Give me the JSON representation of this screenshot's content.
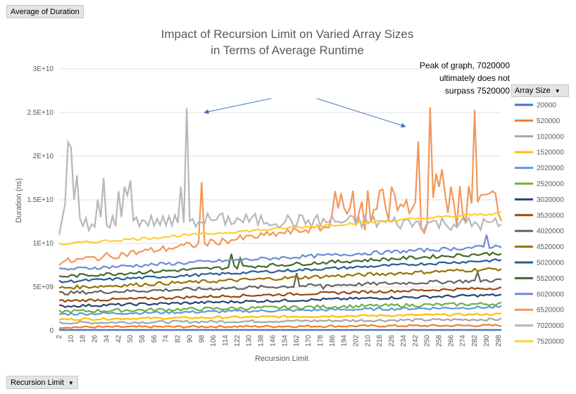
{
  "pivot": {
    "value_field": "Average of Duration",
    "legend_field": "Array Size",
    "axis_field": "Recursion Limit"
  },
  "chart_data": {
    "type": "line",
    "title": [
      "Impact of Recursion Limit on Varied Array Sizes",
      "in Terms of Average Runtime"
    ],
    "xlabel": "Recursion Limit",
    "ylabel": "Duration (ns)",
    "ylim": [
      0,
      30000000000
    ],
    "yticks": [
      "0",
      "5E+09",
      "1E+10",
      "1.5E+10",
      "2E+10",
      "2.5E+10",
      "3E+10"
    ],
    "x_start": 2,
    "x_end": 300,
    "x_step": 2,
    "xticks": [
      "2",
      "10",
      "18",
      "26",
      "34",
      "42",
      "50",
      "58",
      "66",
      "74",
      "82",
      "90",
      "98",
      "106",
      "114",
      "122",
      "130",
      "138",
      "146",
      "154",
      "162",
      "170",
      "178",
      "186",
      "194",
      "202",
      "210",
      "218",
      "226",
      "234",
      "242",
      "250",
      "258",
      "266",
      "274",
      "282",
      "290",
      "298"
    ],
    "legend_position": "right",
    "annotation": [
      "Peak of graph, 7020000",
      "ultimately does not",
      "surpass 7520000"
    ],
    "series": [
      {
        "name": "20000",
        "color": "#4472c4",
        "base": 100000000,
        "end": 100000000,
        "noise": 0
      },
      {
        "name": "520000",
        "color": "#ed7d31",
        "base": 400000000,
        "end": 600000000,
        "noise": 120000000
      },
      {
        "name": "1020000",
        "color": "#a5a5a5",
        "base": 900000000,
        "end": 1300000000,
        "noise": 150000000
      },
      {
        "name": "1520000",
        "color": "#ffc000",
        "base": 1300000000,
        "end": 1900000000,
        "noise": 120000000
      },
      {
        "name": "2020000",
        "color": "#5b9bd5",
        "base": 1900000000,
        "end": 2700000000,
        "noise": 150000000
      },
      {
        "name": "2520000",
        "color": "#70ad47",
        "base": 2200000000,
        "end": 3100000000,
        "noise": 200000000
      },
      {
        "name": "3020000",
        "color": "#264478",
        "base": 2800000000,
        "end": 4100000000,
        "noise": 150000000
      },
      {
        "name": "3520000",
        "color": "#9e480e",
        "base": 3400000000,
        "end": 4900000000,
        "noise": 150000000
      },
      {
        "name": "4020000",
        "color": "#636363",
        "base": 4300000000,
        "end": 5800000000,
        "noise": 200000000
      },
      {
        "name": "4520000",
        "color": "#997300",
        "base": 4900000000,
        "end": 7100000000,
        "noise": 200000000
      },
      {
        "name": "5020000",
        "color": "#255e91",
        "base": 5600000000,
        "end": 8100000000,
        "noise": 150000000
      },
      {
        "name": "5520000",
        "color": "#43682b",
        "base": 6200000000,
        "end": 8900000000,
        "noise": 200000000
      },
      {
        "name": "6020000",
        "color": "#698ed0",
        "base": 7000000000,
        "end": 9700000000,
        "noise": 200000000
      },
      {
        "name": "6520000",
        "color": "#f1975a",
        "base": 7800000000,
        "end": 14500000000,
        "noise": 400000000
      },
      {
        "name": "7020000",
        "color": "#b7b7b7",
        "base": 13000000000,
        "end": 12200000000,
        "noise": 800000000
      },
      {
        "name": "7520000",
        "color": "#ffcd33",
        "base": 9900000000,
        "end": 13500000000,
        "noise": 150000000
      }
    ],
    "spikes": [
      {
        "series": "7020000",
        "points": [
          [
            2,
            11000000000
          ],
          [
            6,
            14500000000
          ],
          [
            8,
            21600000000
          ],
          [
            10,
            21000000000
          ],
          [
            12,
            15000000000
          ],
          [
            14,
            17800000000
          ],
          [
            18,
            12000000000
          ],
          [
            22,
            11500000000
          ],
          [
            28,
            15000000000
          ],
          [
            32,
            17500000000
          ],
          [
            36,
            11800000000
          ],
          [
            42,
            16000000000
          ],
          [
            46,
            16500000000
          ],
          [
            48,
            15500000000
          ],
          [
            50,
            17200000000
          ],
          [
            54,
            13000000000
          ],
          [
            84,
            16500000000
          ],
          [
            88,
            25500000000
          ],
          [
            92,
            12800000000
          ],
          [
            96,
            12500000000
          ]
        ]
      },
      {
        "series": "6520000",
        "points": [
          [
            98,
            17000000000
          ],
          [
            100,
            10000000000
          ],
          [
            188,
            16000000000
          ],
          [
            190,
            14000000000
          ],
          [
            226,
            16500000000
          ],
          [
            244,
            21700000000
          ],
          [
            248,
            11200000000
          ],
          [
            252,
            25600000000
          ],
          [
            256,
            18000000000
          ],
          [
            260,
            18500000000
          ],
          [
            266,
            16500000000
          ],
          [
            282,
            25300000000
          ],
          [
            286,
            15500000000
          ],
          [
            294,
            16000000000
          ]
        ]
      },
      {
        "series": "5520000",
        "points": [
          [
            118,
            8800000000
          ],
          [
            124,
            8300000000
          ]
        ]
      },
      {
        "series": "4020000",
        "points": [
          [
            162,
            6600000000
          ],
          [
            180,
            4800000000
          ],
          [
            284,
            6700000000
          ]
        ]
      },
      {
        "series": "6020000",
        "points": [
          [
            290,
            11000000000
          ]
        ]
      }
    ]
  }
}
